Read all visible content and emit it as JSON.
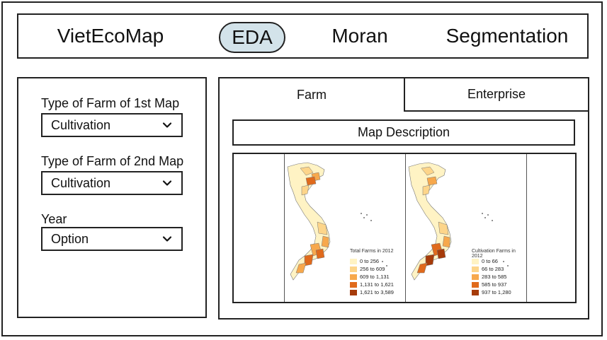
{
  "nav": {
    "items": [
      {
        "label": "VietEcoMap",
        "active": false
      },
      {
        "label": "EDA",
        "active": true
      },
      {
        "label": "Moran",
        "active": false
      },
      {
        "label": "Segmentation",
        "active": false
      }
    ],
    "active_color": "#d3e3ea"
  },
  "filters": {
    "farm_type_1": {
      "label": "Type of Farm of 1st Map",
      "value": "Cultivation"
    },
    "farm_type_2": {
      "label": "Type of Farm of 2nd Map",
      "value": "Cultivation"
    },
    "year": {
      "label": "Year",
      "value": "Option"
    },
    "chevron_icon": "chevron-down-icon"
  },
  "tabs": [
    {
      "label": "Farm",
      "active": true
    },
    {
      "label": "Enterprise",
      "active": false
    }
  ],
  "description_button": "Map Description",
  "maps": [
    {
      "legend_title": "Total Farms in 2012",
      "legend": [
        {
          "label": "0 to 256",
          "color": "#fff3c4"
        },
        {
          "label": "256 to 609",
          "color": "#fdd58a"
        },
        {
          "label": "609 to 1,131",
          "color": "#f7a84c"
        },
        {
          "label": "1,131 to 1,621",
          "color": "#e06a1c"
        },
        {
          "label": "1,621 to 3,589",
          "color": "#a63b0a"
        }
      ]
    },
    {
      "legend_title": "Cultivation Farms in 2012",
      "legend": [
        {
          "label": "0 to 66",
          "color": "#fff3c4"
        },
        {
          "label": "66 to 283",
          "color": "#fdd58a"
        },
        {
          "label": "283 to 585",
          "color": "#f7a84c"
        },
        {
          "label": "585 to 937",
          "color": "#e06a1c"
        },
        {
          "label": "937 to 1,280",
          "color": "#a63b0a"
        }
      ]
    }
  ]
}
